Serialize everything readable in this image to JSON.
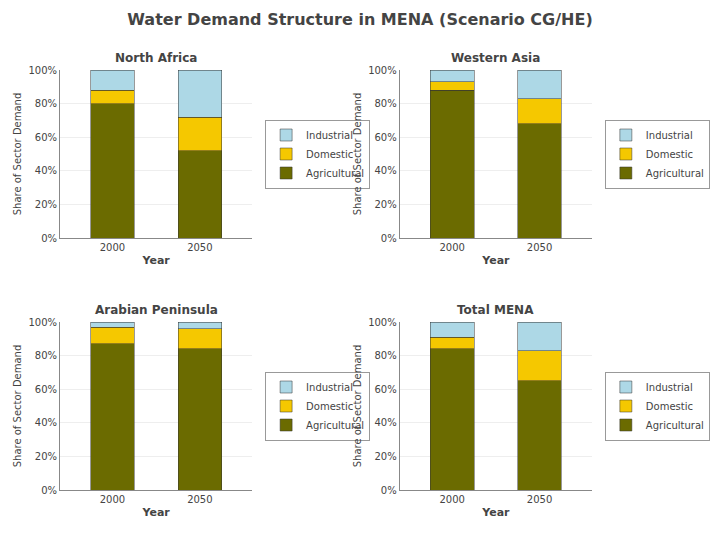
{
  "title": "Water Demand Structure in MENA (Scenario CG/HE)",
  "chart_data": [
    {
      "type": "bar",
      "title": "North Africa",
      "stacked": true,
      "grid": true,
      "legend": "right",
      "xlabel": "Year",
      "ylabel": "Share of Sector Demand",
      "categories": [
        "2000",
        "2050"
      ],
      "series": [
        {
          "name": "Agricultural",
          "color": "#6b6b00",
          "values": [
            0.8,
            0.52
          ]
        },
        {
          "name": "Domestic",
          "color": "#f5c800",
          "values": [
            0.08,
            0.2
          ]
        },
        {
          "name": "Industrial",
          "color": "#add8e6",
          "values": [
            0.12,
            0.28
          ]
        }
      ],
      "ylim": [
        0,
        1.0
      ],
      "yticks": [
        {
          "value": 0,
          "label": "0%"
        },
        {
          "value": 0.2,
          "label": "20%"
        },
        {
          "value": 0.4,
          "label": "40%"
        },
        {
          "value": 0.6,
          "label": "60%"
        },
        {
          "value": 0.8,
          "label": "80%"
        },
        {
          "value": 1.0,
          "label": "100%"
        }
      ]
    },
    {
      "type": "bar",
      "title": "Western Asia",
      "stacked": true,
      "grid": true,
      "legend": "right",
      "xlabel": "Year",
      "ylabel": "Share of Sector Demand",
      "categories": [
        "2000",
        "2050"
      ],
      "series": [
        {
          "name": "Agricultural",
          "color": "#6b6b00",
          "values": [
            0.88,
            0.68
          ]
        },
        {
          "name": "Domestic",
          "color": "#f5c800",
          "values": [
            0.05,
            0.15
          ]
        },
        {
          "name": "Industrial",
          "color": "#add8e6",
          "values": [
            0.07,
            0.17
          ]
        }
      ],
      "ylim": [
        0,
        1.0
      ],
      "yticks": [
        {
          "value": 0,
          "label": "0%"
        },
        {
          "value": 0.2,
          "label": "20%"
        },
        {
          "value": 0.4,
          "label": "40%"
        },
        {
          "value": 0.6,
          "label": "60%"
        },
        {
          "value": 0.8,
          "label": "80%"
        },
        {
          "value": 1.0,
          "label": "100%"
        }
      ]
    },
    {
      "type": "bar",
      "title": "Arabian Peninsula",
      "stacked": true,
      "grid": true,
      "legend": "right",
      "xlabel": "Year",
      "ylabel": "Share of Sector Demand",
      "categories": [
        "2000",
        "2050"
      ],
      "series": [
        {
          "name": "Agricultural",
          "color": "#6b6b00",
          "values": [
            0.87,
            0.84
          ]
        },
        {
          "name": "Domestic",
          "color": "#f5c800",
          "values": [
            0.1,
            0.12
          ]
        },
        {
          "name": "Industrial",
          "color": "#add8e6",
          "values": [
            0.03,
            0.04
          ]
        }
      ],
      "ylim": [
        0,
        1.0
      ],
      "yticks": [
        {
          "value": 0,
          "label": "0%"
        },
        {
          "value": 0.2,
          "label": "20%"
        },
        {
          "value": 0.4,
          "label": "40%"
        },
        {
          "value": 0.6,
          "label": "60%"
        },
        {
          "value": 0.8,
          "label": "80%"
        },
        {
          "value": 1.0,
          "label": "100%"
        }
      ]
    },
    {
      "type": "bar",
      "title": "Total MENA",
      "stacked": true,
      "grid": true,
      "legend": "right",
      "xlabel": "Year",
      "ylabel": "Share of Sector Demand",
      "categories": [
        "2000",
        "2050"
      ],
      "series": [
        {
          "name": "Agricultural",
          "color": "#6b6b00",
          "values": [
            0.84,
            0.65
          ]
        },
        {
          "name": "Domestic",
          "color": "#f5c800",
          "values": [
            0.07,
            0.18
          ]
        },
        {
          "name": "Industrial",
          "color": "#add8e6",
          "values": [
            0.09,
            0.17
          ]
        }
      ],
      "ylim": [
        0,
        1.0
      ],
      "yticks": [
        {
          "value": 0,
          "label": "0%"
        },
        {
          "value": 0.2,
          "label": "20%"
        },
        {
          "value": 0.4,
          "label": "40%"
        },
        {
          "value": 0.6,
          "label": "60%"
        },
        {
          "value": 0.8,
          "label": "80%"
        },
        {
          "value": 1.0,
          "label": "100%"
        }
      ]
    }
  ]
}
